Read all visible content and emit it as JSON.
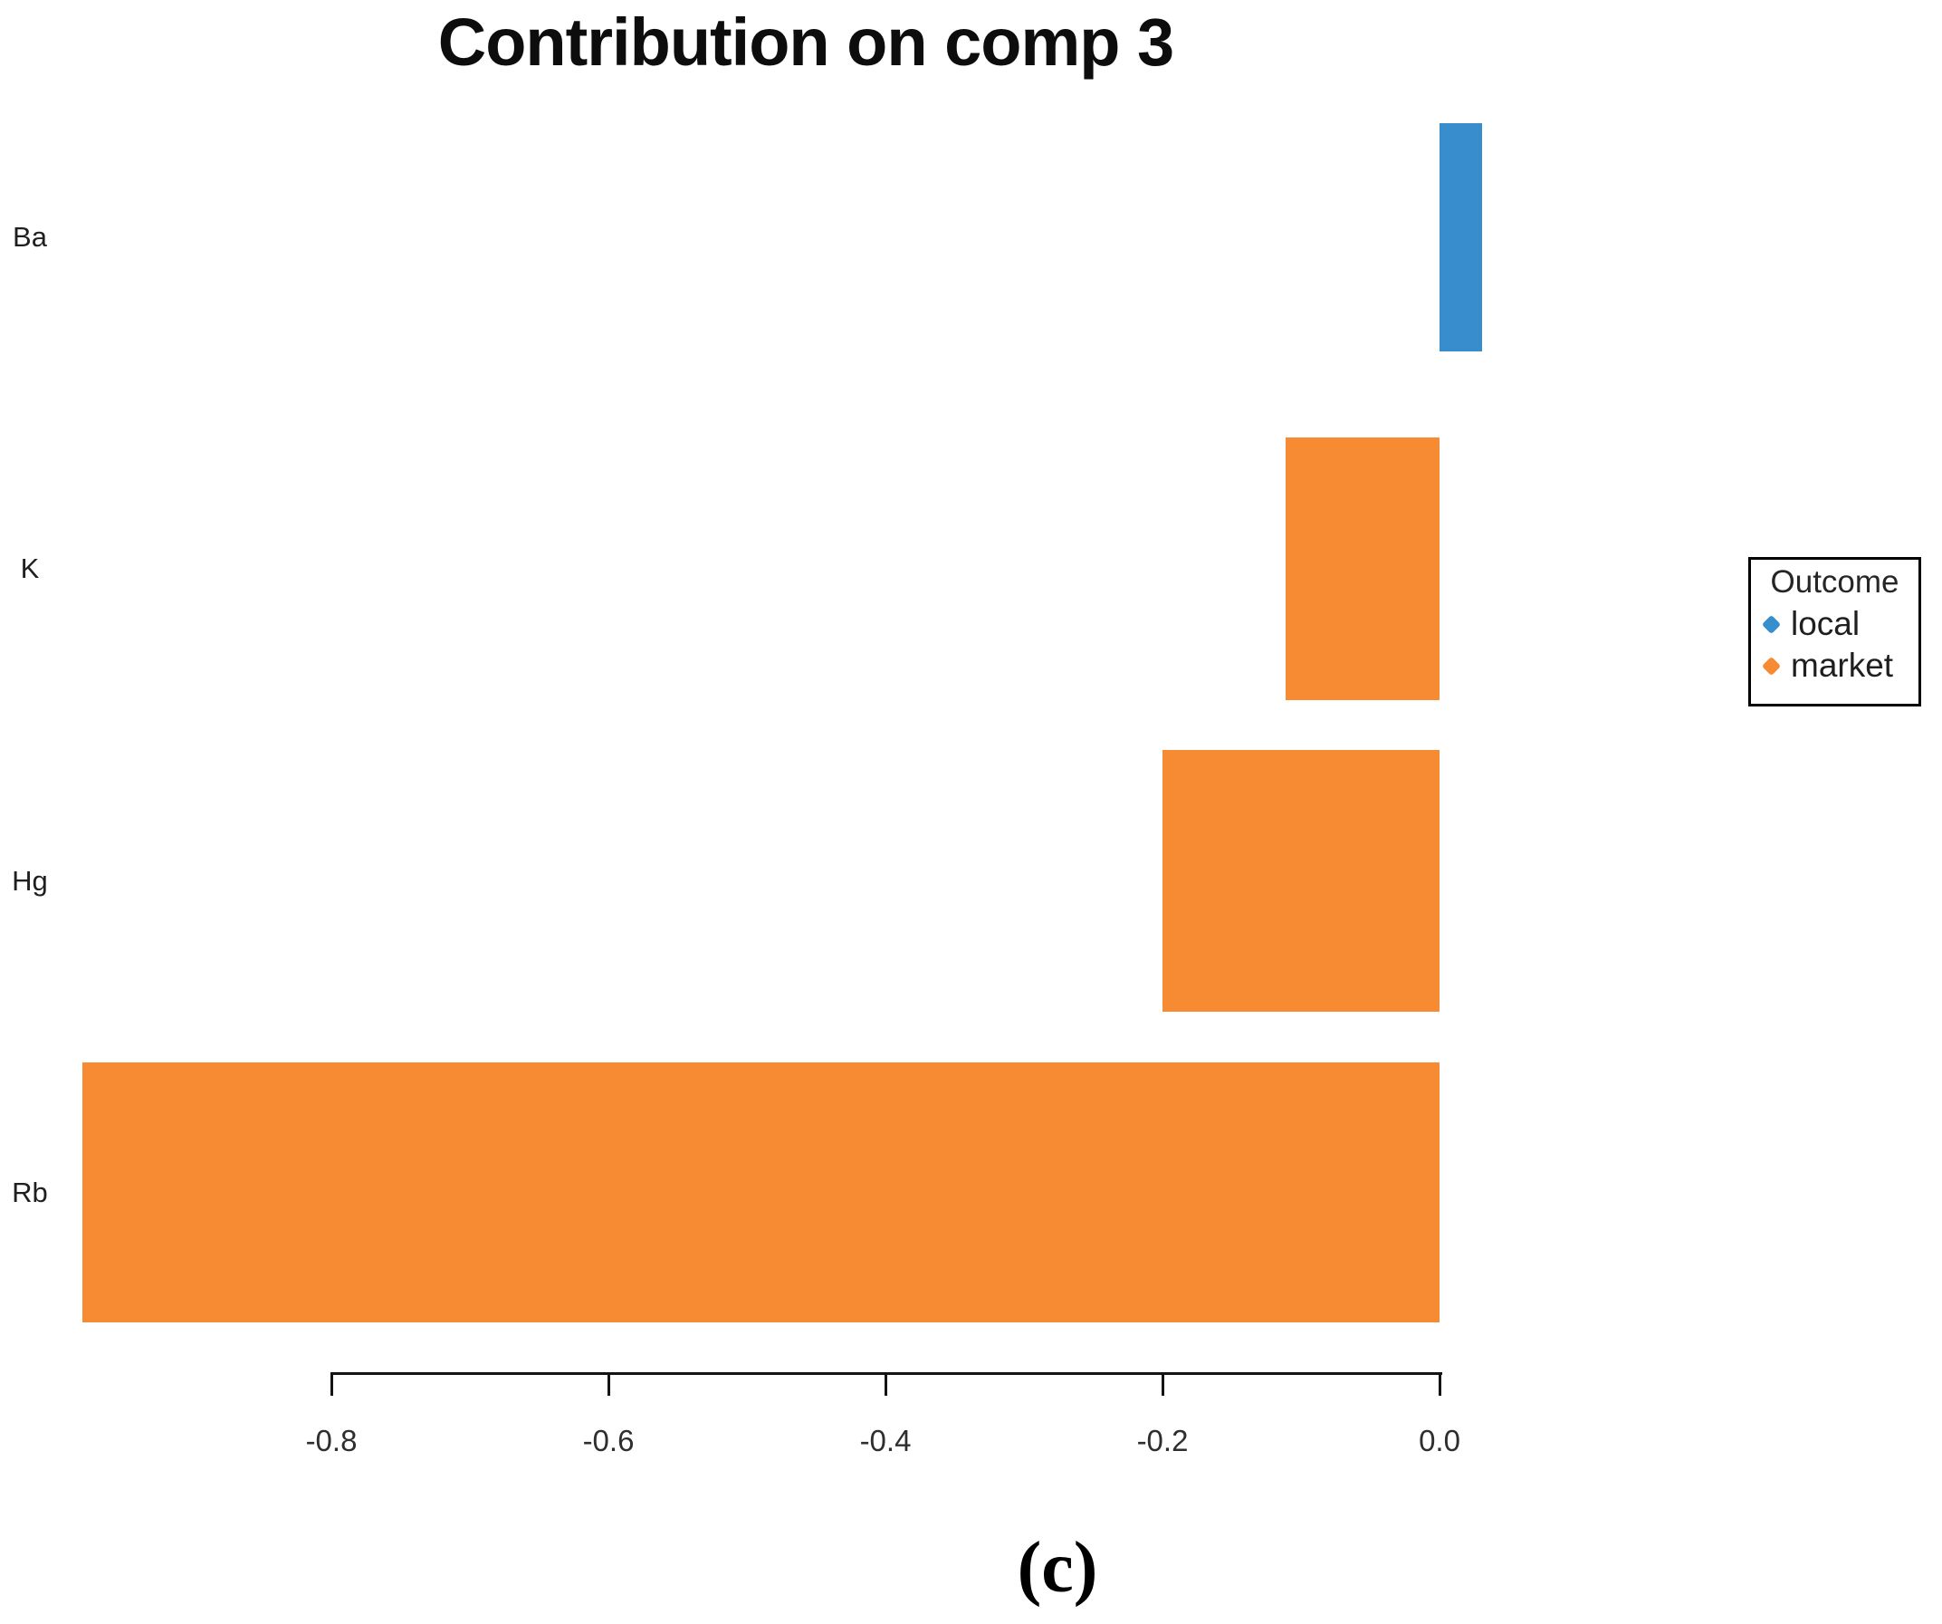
{
  "title": "Contribution on comp 3",
  "caption": "(c)",
  "legend": {
    "title": "Outcome",
    "items": [
      {
        "label": "local",
        "color": "#388ECC"
      },
      {
        "label": "market",
        "color": "#F68B33"
      }
    ]
  },
  "axis": {
    "ticks": [
      {
        "label": "-0.8",
        "value": -0.8
      },
      {
        "label": "-0.6",
        "value": -0.6
      },
      {
        "label": "-0.4",
        "value": -0.4
      },
      {
        "label": "-0.2",
        "value": -0.2
      },
      {
        "label": "0.0",
        "value": 0.0
      }
    ]
  },
  "chart_data": {
    "type": "bar",
    "orientation": "horizontal",
    "title": "Contribution on comp 3",
    "categories": [
      "Ba",
      "K",
      "Hg",
      "Rb"
    ],
    "values": [
      0.031,
      -0.111,
      -0.2,
      -0.98
    ],
    "groups": [
      "local",
      "market",
      "market",
      "market"
    ],
    "series_colors": {
      "local": "#388ECC",
      "market": "#F68B33"
    },
    "xlabel": "",
    "ylabel": "",
    "xlim": [
      -0.8,
      0.0
    ],
    "grid": false,
    "legend_title": "Outcome",
    "legend_position": "right",
    "legend_entries": [
      "local",
      "market"
    ]
  }
}
